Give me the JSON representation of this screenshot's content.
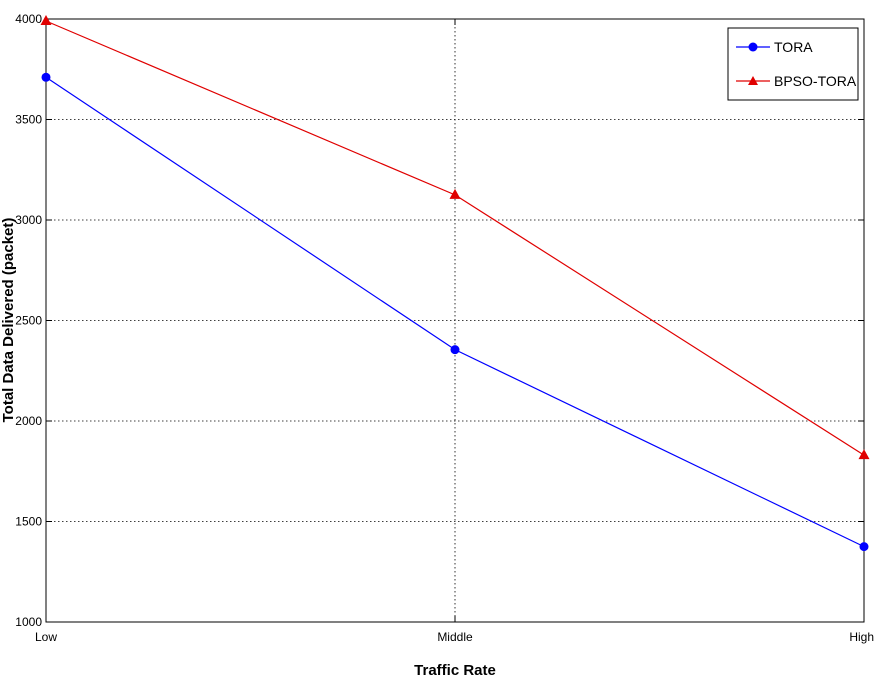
{
  "chart_data": {
    "type": "line",
    "categories": [
      "Low",
      "Middle",
      "High"
    ],
    "xlabel": "Traffic Rate",
    "ylabel": "Total Data Delivered (packet)",
    "ylim": [
      1000,
      4000
    ],
    "yticks": [
      1000,
      1500,
      2000,
      2500,
      3000,
      3500,
      4000
    ],
    "grid": true,
    "legend_position": "top-right",
    "series": [
      {
        "name": "TORA",
        "values": [
          3710,
          2355,
          1375
        ],
        "color": "#0000ff",
        "marker": "circle"
      },
      {
        "name": "BPSO-TORA",
        "values": [
          3990,
          3125,
          1830
        ],
        "color": "#e00000",
        "marker": "triangle"
      }
    ]
  }
}
